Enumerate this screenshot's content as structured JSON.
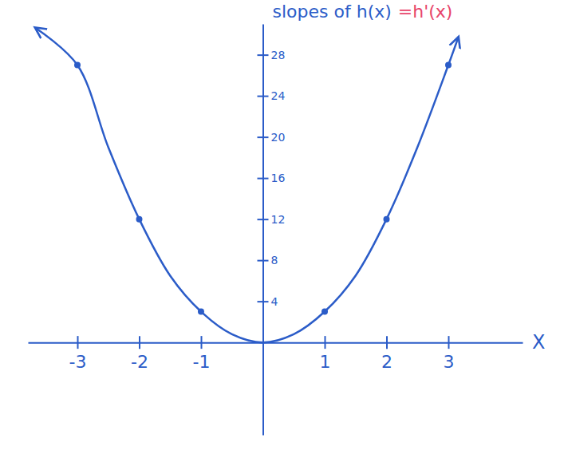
{
  "chart_data": {
    "type": "line",
    "title": "slopes of h(x)",
    "annotation": "=h'(x)",
    "x_label": "X",
    "xlim": [
      -3.8,
      4.2
    ],
    "ylim": [
      -9,
      31
    ],
    "xticks": [
      -3,
      -2,
      -1,
      1,
      2,
      3
    ],
    "yticks": [
      4,
      8,
      12,
      16,
      20,
      24,
      28
    ],
    "grid": false,
    "series": [
      {
        "type": "line",
        "color": "#2b5cc8",
        "x": [
          -3.65,
          -3,
          -2.5,
          -2,
          -1.5,
          -1,
          -0.5,
          0,
          0.5,
          1,
          1.5,
          2,
          2.5,
          3,
          3.15
        ],
        "values": [
          30.5,
          27,
          19,
          12,
          6.5,
          3,
          0.8,
          0,
          0.8,
          3,
          6.5,
          12,
          19,
          27,
          29.5
        ]
      },
      {
        "type": "scatter",
        "marker": "circle",
        "color": "#2b5cc8",
        "x": [
          -3,
          -2,
          -1,
          1,
          2,
          3
        ],
        "values": [
          27,
          12,
          3,
          3,
          12,
          27
        ]
      }
    ]
  }
}
